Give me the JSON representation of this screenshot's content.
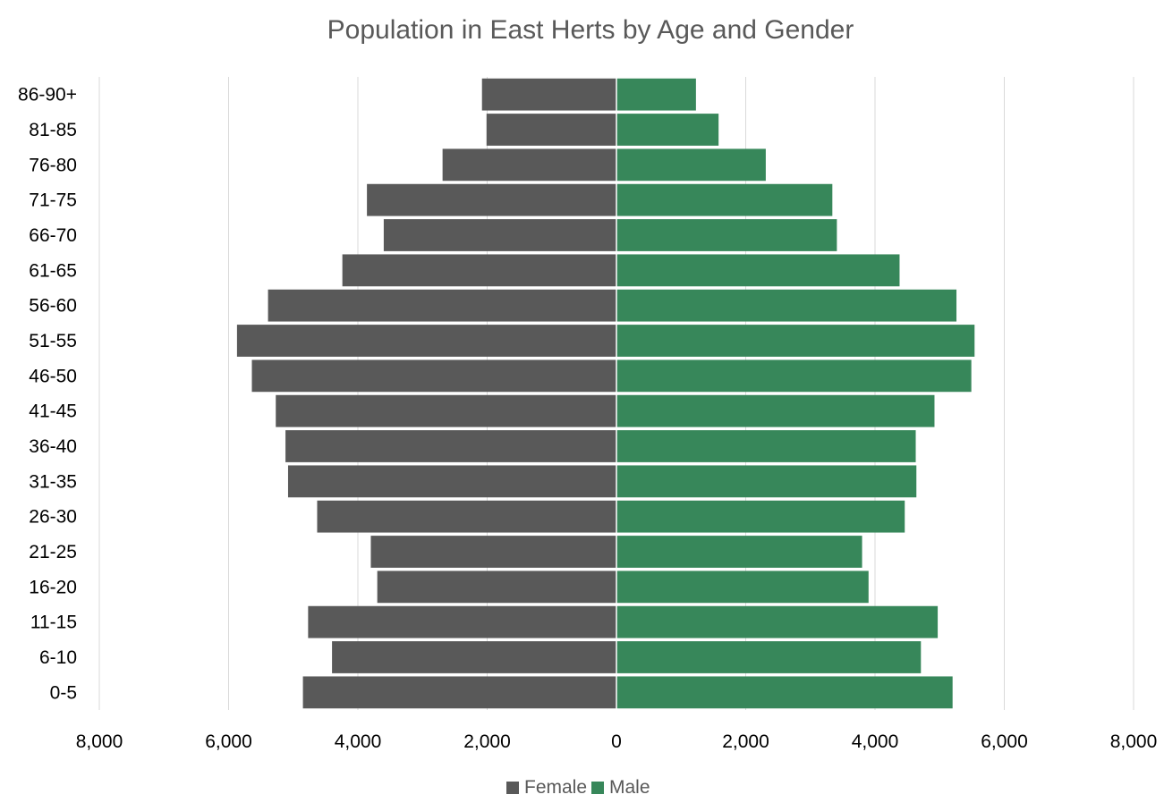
{
  "chart_data": {
    "type": "bar",
    "orientation": "horizontal",
    "subtype": "population-pyramid",
    "title": "Population in East Herts by Age and Gender",
    "categories": [
      "0-5",
      "6-10",
      "11-15",
      "16-20",
      "21-25",
      "26-30",
      "31-35",
      "36-40",
      "41-45",
      "46-50",
      "51-55",
      "56-60",
      "61-65",
      "66-70",
      "71-75",
      "76-80",
      "81-85",
      "86-90+"
    ],
    "series": [
      {
        "name": "Female",
        "color": "#595959",
        "side": "left",
        "values": [
          4850,
          4400,
          4770,
          3700,
          3800,
          4630,
          5080,
          5120,
          5270,
          5640,
          5870,
          5390,
          4240,
          3600,
          3860,
          2690,
          2010,
          2080
        ]
      },
      {
        "name": "Male",
        "color": "#37875A",
        "side": "right",
        "values": [
          5200,
          4710,
          4970,
          3900,
          3800,
          4460,
          4640,
          4630,
          4920,
          5490,
          5540,
          5260,
          4380,
          3410,
          3340,
          2310,
          1580,
          1230
        ]
      }
    ],
    "x_ticks": [
      "8,000",
      "6,000",
      "4,000",
      "2,000",
      "0",
      "2,000",
      "4,000",
      "6,000",
      "8,000"
    ],
    "xlim": [
      -8000,
      8000
    ],
    "grid": "vertical",
    "legend": {
      "position": "bottom",
      "items": [
        "Female",
        "Male"
      ]
    }
  }
}
